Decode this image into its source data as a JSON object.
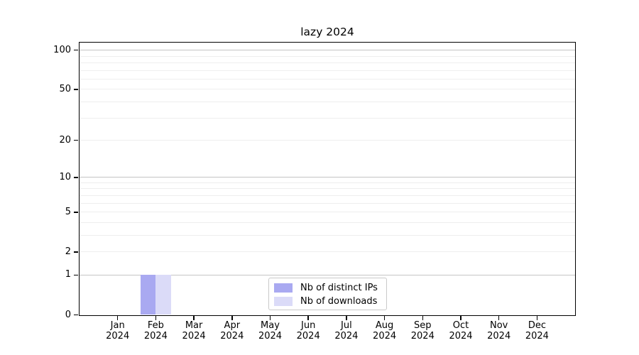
{
  "background": "#ffffff",
  "axis_color": "#000000",
  "chart_data": {
    "type": "bar",
    "title": "lazy 2024",
    "xlabel": "",
    "ylabel": "",
    "yscale": "log1p",
    "ylim": [
      0,
      115
    ],
    "categories": [
      "Jan 2024",
      "Feb 2024",
      "Mar 2024",
      "Apr 2024",
      "May 2024",
      "Jun 2024",
      "Jul 2024",
      "Aug 2024",
      "Sep 2024",
      "Oct 2024",
      "Nov 2024",
      "Dec 2024"
    ],
    "series": [
      {
        "name": "Nb of distinct IPs",
        "color": "#a9a9f1",
        "values": [
          0,
          1,
          0,
          0,
          0,
          0,
          0,
          0,
          0,
          0,
          0,
          0
        ]
      },
      {
        "name": "Nb of downloads",
        "color": "#dbdbf8",
        "values": [
          0,
          1,
          0,
          0,
          0,
          0,
          0,
          0,
          0,
          0,
          0,
          0
        ]
      }
    ],
    "y_ticks": [
      0,
      1,
      2,
      5,
      10,
      20,
      50,
      100
    ],
    "y_major_gridlines": [
      1,
      10,
      100
    ],
    "y_minor_gridlines": [
      2,
      3,
      4,
      5,
      6,
      7,
      8,
      9,
      20,
      30,
      40,
      50,
      60,
      70,
      80,
      90
    ],
    "grid": {
      "major_color": "#c4c4c4",
      "minor_color": "#eeeeee"
    },
    "legend": {
      "position": "lower center"
    }
  }
}
